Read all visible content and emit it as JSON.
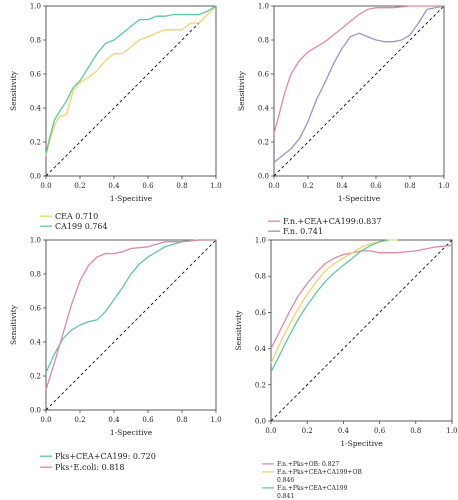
{
  "panels": [
    {
      "xlabel": "1-Specitive",
      "ylabel": "Sensitivity",
      "xlim": [
        0,
        1
      ],
      "ylim": [
        0,
        1
      ],
      "ticks": [
        "0.0",
        "0.2",
        "0.4",
        "0.6",
        "0.8",
        "1.0"
      ],
      "legend": [
        {
          "text": "CEA 0.710",
          "color": "#f0d36a"
        },
        {
          "text": "CA199 0.764",
          "color": "#5fc8a0"
        }
      ]
    },
    {
      "xlabel": "1-Specitive",
      "ylabel": "Sensitivity",
      "xlim": [
        0,
        1
      ],
      "ylim": [
        0,
        1
      ],
      "ticks": [
        "0.0",
        "0.2",
        "0.4",
        "0.6",
        "0.8",
        "1.0"
      ],
      "legend": [
        {
          "text": "F.n.+CEA+CA199:0.837",
          "color": "#e08a9a"
        },
        {
          "text": "F.n. 0.741",
          "color": "#9b93c9"
        }
      ]
    },
    {
      "xlabel": "1-Specitive",
      "ylabel": "Sensitivity",
      "xlim": [
        0,
        1
      ],
      "ylim": [
        0,
        1
      ],
      "ticks": [
        "0.0",
        "0.2",
        "0.4",
        "0.6",
        "0.8",
        "1.0"
      ],
      "legend": [
        {
          "text": "Pks+CEA+CA199: 0.720",
          "color": "#5fc8a0"
        },
        {
          "text": "Pks⁺E.coli: 0.818",
          "color": "#d98aa8"
        }
      ]
    },
    {
      "xlabel": "1-Specitive",
      "ylabel": "Sensitivity",
      "xlim": [
        0,
        1
      ],
      "ylim": [
        0,
        1
      ],
      "ticks": [
        "0.0",
        "0.2",
        "0.4",
        "0.6",
        "0.8",
        "1.0"
      ],
      "legend": [
        {
          "text": "F.n.+Pks+OB: 0.827",
          "color": "#d98aa8"
        },
        {
          "text": "F.n.+Pks+CEA+CA199+OB",
          "color": "#f0d36a"
        },
        {
          "text": "0.846",
          "color": ""
        },
        {
          "text": "F.n.+Pks+CEA+CA199",
          "color": "#5fc8a0"
        },
        {
          "text": "0.841",
          "color": ""
        }
      ]
    }
  ],
  "chart_data": [
    {
      "type": "line",
      "xlabel": "1-Specitive",
      "ylabel": "Sensitivity",
      "xlim": [
        0,
        1
      ],
      "ylim": [
        0,
        1
      ],
      "grid": false,
      "reference_line": {
        "x": [
          0,
          1
        ],
        "y": [
          0,
          1
        ],
        "style": "dashed"
      },
      "series": [
        {
          "name": "CEA 0.710",
          "color": "#f0d36a",
          "x": [
            0,
            0.02,
            0.05,
            0.08,
            0.12,
            0.16,
            0.2,
            0.25,
            0.3,
            0.35,
            0.4,
            0.45,
            0.5,
            0.55,
            0.6,
            0.65,
            0.7,
            0.75,
            0.8,
            0.85,
            0.9,
            0.95,
            1.0
          ],
          "y": [
            0.12,
            0.2,
            0.3,
            0.35,
            0.36,
            0.5,
            0.55,
            0.58,
            0.62,
            0.68,
            0.72,
            0.72,
            0.76,
            0.8,
            0.82,
            0.84,
            0.86,
            0.86,
            0.86,
            0.9,
            0.9,
            0.95,
            1.0
          ]
        },
        {
          "name": "CA199 0.764",
          "color": "#5fc8a0",
          "x": [
            0,
            0.02,
            0.05,
            0.08,
            0.12,
            0.16,
            0.2,
            0.25,
            0.3,
            0.35,
            0.4,
            0.45,
            0.5,
            0.55,
            0.6,
            0.65,
            0.7,
            0.75,
            0.8,
            0.85,
            0.9,
            0.95,
            1.0
          ],
          "y": [
            0.13,
            0.22,
            0.33,
            0.38,
            0.44,
            0.52,
            0.56,
            0.64,
            0.72,
            0.78,
            0.8,
            0.84,
            0.88,
            0.92,
            0.92,
            0.94,
            0.94,
            0.95,
            0.95,
            0.95,
            0.95,
            0.97,
            1.0
          ]
        }
      ]
    },
    {
      "type": "line",
      "xlabel": "1-Specitive",
      "ylabel": "Sensitivity",
      "xlim": [
        0,
        1
      ],
      "ylim": [
        0,
        1
      ],
      "grid": false,
      "reference_line": {
        "x": [
          0,
          1
        ],
        "y": [
          0,
          1
        ],
        "style": "dashed"
      },
      "series": [
        {
          "name": "F.n.+CEA+CA199:0.837",
          "color": "#e08a9a",
          "x": [
            0,
            0.03,
            0.06,
            0.1,
            0.15,
            0.2,
            0.25,
            0.3,
            0.35,
            0.4,
            0.45,
            0.5,
            0.55,
            0.6,
            0.7,
            0.8,
            0.9,
            1.0
          ],
          "y": [
            0.25,
            0.36,
            0.48,
            0.6,
            0.68,
            0.73,
            0.76,
            0.79,
            0.83,
            0.87,
            0.91,
            0.95,
            0.98,
            0.99,
            0.99,
            1.0,
            1.0,
            1.0
          ]
        },
        {
          "name": "F.n. 0.741",
          "color": "#9b93c9",
          "x": [
            0,
            0.05,
            0.1,
            0.15,
            0.2,
            0.25,
            0.3,
            0.35,
            0.4,
            0.45,
            0.5,
            0.55,
            0.6,
            0.65,
            0.7,
            0.75,
            0.8,
            0.85,
            0.9,
            1.0
          ],
          "y": [
            0.08,
            0.12,
            0.16,
            0.22,
            0.32,
            0.45,
            0.55,
            0.66,
            0.75,
            0.82,
            0.84,
            0.82,
            0.8,
            0.79,
            0.79,
            0.8,
            0.83,
            0.9,
            0.98,
            1.0
          ]
        }
      ]
    },
    {
      "type": "line",
      "xlabel": "1-Specitive",
      "ylabel": "Sensitivity",
      "xlim": [
        0,
        1
      ],
      "ylim": [
        0,
        1
      ],
      "grid": false,
      "reference_line": {
        "x": [
          0,
          1
        ],
        "y": [
          0,
          1
        ],
        "style": "dashed"
      },
      "series": [
        {
          "name": "Pks+CEA+CA199: 0.720",
          "color": "#5fc8a0",
          "x": [
            0,
            0.05,
            0.1,
            0.15,
            0.2,
            0.25,
            0.3,
            0.35,
            0.4,
            0.45,
            0.5,
            0.55,
            0.6,
            0.65,
            0.7,
            0.8,
            0.9,
            1.0
          ],
          "y": [
            0.22,
            0.33,
            0.42,
            0.47,
            0.5,
            0.52,
            0.53,
            0.58,
            0.65,
            0.72,
            0.8,
            0.86,
            0.9,
            0.93,
            0.96,
            0.99,
            1.0,
            1.0
          ]
        },
        {
          "name": "Pks⁺E.coli: 0.818",
          "color": "#d98aa8",
          "x": [
            0,
            0.05,
            0.1,
            0.15,
            0.2,
            0.25,
            0.3,
            0.35,
            0.4,
            0.45,
            0.5,
            0.6,
            0.7,
            0.8,
            0.9,
            1.0
          ],
          "y": [
            0.12,
            0.28,
            0.45,
            0.62,
            0.76,
            0.85,
            0.9,
            0.92,
            0.92,
            0.93,
            0.95,
            0.96,
            0.99,
            0.99,
            1.0,
            1.0
          ]
        }
      ]
    },
    {
      "type": "line",
      "xlabel": "1-Specitive",
      "ylabel": "Sensitivity",
      "xlim": [
        0,
        1
      ],
      "ylim": [
        0,
        1
      ],
      "grid": false,
      "reference_line": {
        "x": [
          0,
          1
        ],
        "y": [
          0,
          1
        ],
        "style": "dashed"
      },
      "series": [
        {
          "name": "F.n.+Pks+OB: 0.827",
          "color": "#d98aa8",
          "x": [
            0,
            0.05,
            0.1,
            0.15,
            0.2,
            0.25,
            0.3,
            0.35,
            0.4,
            0.45,
            0.5,
            0.55,
            0.6,
            0.7,
            0.8,
            0.9,
            1.0
          ],
          "y": [
            0.4,
            0.5,
            0.6,
            0.69,
            0.76,
            0.82,
            0.87,
            0.9,
            0.92,
            0.93,
            0.94,
            0.94,
            0.93,
            0.93,
            0.94,
            0.96,
            0.97
          ]
        },
        {
          "name": "F.n.+Pks+CEA+CA199+OB 0.846",
          "color": "#f0d36a",
          "x": [
            0,
            0.05,
            0.1,
            0.15,
            0.2,
            0.25,
            0.3,
            0.35,
            0.4,
            0.45,
            0.5,
            0.55,
            0.6,
            0.65,
            0.7
          ],
          "y": [
            0.32,
            0.43,
            0.53,
            0.62,
            0.7,
            0.77,
            0.83,
            0.87,
            0.9,
            0.93,
            0.96,
            0.98,
            0.99,
            1.0,
            1.0
          ]
        },
        {
          "name": "F.n.+Pks+CEA+CA199 0.841",
          "color": "#5fc8a0",
          "x": [
            0,
            0.05,
            0.1,
            0.15,
            0.2,
            0.25,
            0.3,
            0.35,
            0.4,
            0.45,
            0.5,
            0.55,
            0.6,
            0.65
          ],
          "y": [
            0.27,
            0.37,
            0.47,
            0.56,
            0.64,
            0.71,
            0.77,
            0.82,
            0.86,
            0.9,
            0.94,
            0.97,
            0.99,
            1.0
          ]
        }
      ]
    }
  ]
}
